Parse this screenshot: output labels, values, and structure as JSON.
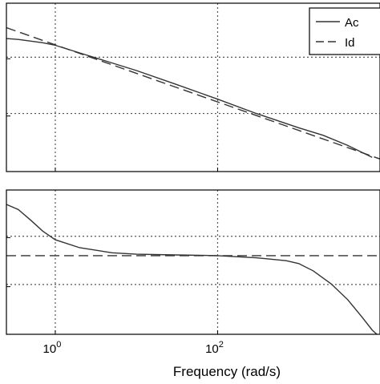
{
  "chart_data": [
    {
      "type": "line",
      "title": "",
      "xlabel": "",
      "ylabel": "",
      "xscale": "log",
      "xlim": [
        0.25,
        10000
      ],
      "ylim": [
        0,
        1
      ],
      "grid": true,
      "grid_style": "dotted",
      "legend": {
        "placement": "top-right",
        "entries": [
          {
            "label": "Ac",
            "style": "solid"
          },
          {
            "label": "Id",
            "style": "dashed"
          }
        ]
      },
      "series": [
        {
          "name": "Ac",
          "style": "solid",
          "color": "#333333",
          "x": [
            0.25,
            0.35,
            0.5,
            0.7,
            1,
            2,
            5,
            10,
            30,
            100,
            300,
            1000,
            2000,
            4000,
            8000
          ],
          "y": [
            0.79,
            0.785,
            0.775,
            0.765,
            0.75,
            0.705,
            0.645,
            0.6,
            0.52,
            0.43,
            0.345,
            0.26,
            0.215,
            0.155,
            0.085
          ]
        },
        {
          "name": "Id",
          "style": "dashed",
          "color": "#333333",
          "x": [
            0.25,
            10000
          ],
          "y": [
            0.855,
            0.075
          ]
        }
      ]
    },
    {
      "type": "line",
      "title": "",
      "xlabel": "Frequency (rad/s)",
      "ylabel": "",
      "xscale": "log",
      "xlim": [
        0.25,
        10000
      ],
      "ylim": [
        0,
        1
      ],
      "grid": true,
      "grid_style": "dotted",
      "x_ticks": [
        {
          "value": 1,
          "base": "10",
          "exponent": "0"
        },
        {
          "value": 100,
          "base": "10",
          "exponent": "2"
        }
      ],
      "series": [
        {
          "name": "Ac",
          "style": "solid",
          "color": "#333333",
          "x": [
            0.25,
            0.35,
            0.5,
            0.7,
            1,
            2,
            5,
            10,
            30,
            100,
            300,
            700,
            1000,
            1500,
            2500,
            4000,
            6000,
            8000,
            10000
          ],
          "y": [
            0.9,
            0.865,
            0.79,
            0.715,
            0.655,
            0.6,
            0.565,
            0.555,
            0.55,
            0.545,
            0.53,
            0.51,
            0.49,
            0.44,
            0.35,
            0.24,
            0.12,
            0.03,
            -0.02
          ]
        },
        {
          "name": "Id",
          "style": "dashed",
          "color": "#333333",
          "x": [
            0.25,
            10000
          ],
          "y": [
            0.545,
            0.545
          ]
        }
      ]
    }
  ]
}
